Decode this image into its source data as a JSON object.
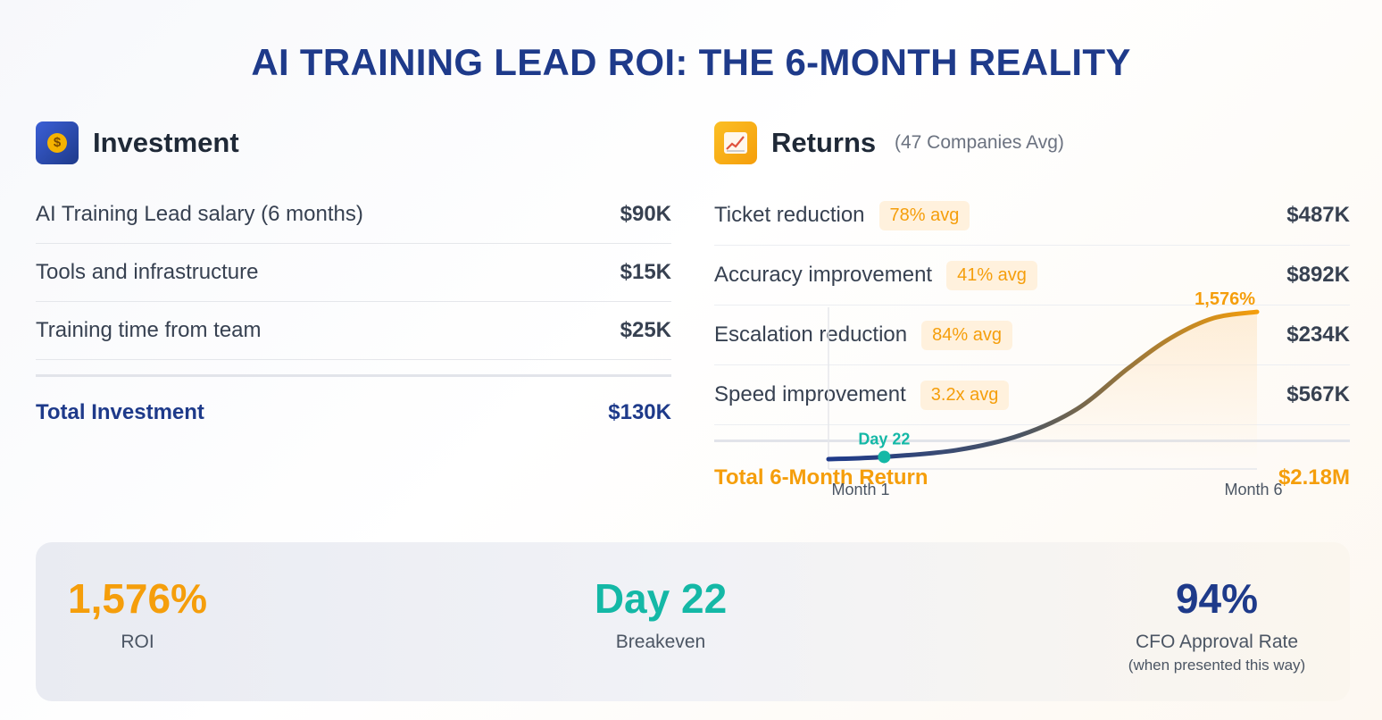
{
  "title": "AI TRAINING LEAD ROI: THE 6-MONTH REALITY",
  "colors": {
    "navy": "#1e3a8a",
    "orange": "#f59e0b",
    "teal": "#14b8a6",
    "pill_bg": "#fff1dd"
  },
  "investment": {
    "icon": "money-bag-icon",
    "heading": "Investment",
    "rows": [
      {
        "label": "AI Training Lead salary (6 months)",
        "amount": "$90K"
      },
      {
        "label": "Tools and infrastructure",
        "amount": "$15K"
      },
      {
        "label": "Training time from team",
        "amount": "$25K"
      }
    ],
    "total_label": "Total Investment",
    "total_amount": "$130K"
  },
  "returns": {
    "icon": "chart-increasing-icon",
    "heading": "Returns",
    "subheading": "(47 Companies Avg)",
    "rows": [
      {
        "label": "Ticket reduction",
        "badge": "78% avg",
        "amount": "$487K"
      },
      {
        "label": "Accuracy improvement",
        "badge": "41% avg",
        "amount": "$892K"
      },
      {
        "label": "Escalation reduction",
        "badge": "84% avg",
        "amount": "$234K"
      },
      {
        "label": "Speed improvement",
        "badge": "3.2x avg",
        "amount": "$567K"
      }
    ],
    "total_label": "Total 6-Month Return",
    "total_amount": "$2.18M"
  },
  "chart_data": {
    "type": "area",
    "x_start_label": "Month 1",
    "x_end_label": "Month 6",
    "breakeven_label": "Day 22",
    "end_label": "1,576%",
    "points": [
      {
        "t": 0.0,
        "v": 0.0
      },
      {
        "t": 0.13,
        "v": 0.015
      },
      {
        "t": 0.3,
        "v": 0.06
      },
      {
        "t": 0.45,
        "v": 0.16
      },
      {
        "t": 0.58,
        "v": 0.33
      },
      {
        "t": 0.7,
        "v": 0.6
      },
      {
        "t": 0.8,
        "v": 0.8
      },
      {
        "t": 0.9,
        "v": 0.93
      },
      {
        "t": 1.0,
        "v": 0.97
      }
    ],
    "breakeven_t": 0.13
  },
  "kpis": [
    {
      "value": "1,576%",
      "label": "ROI"
    },
    {
      "value": "Day 22",
      "label": "Breakeven"
    },
    {
      "value": "94%",
      "label": "CFO Approval Rate",
      "note": "(when presented this way)"
    }
  ]
}
